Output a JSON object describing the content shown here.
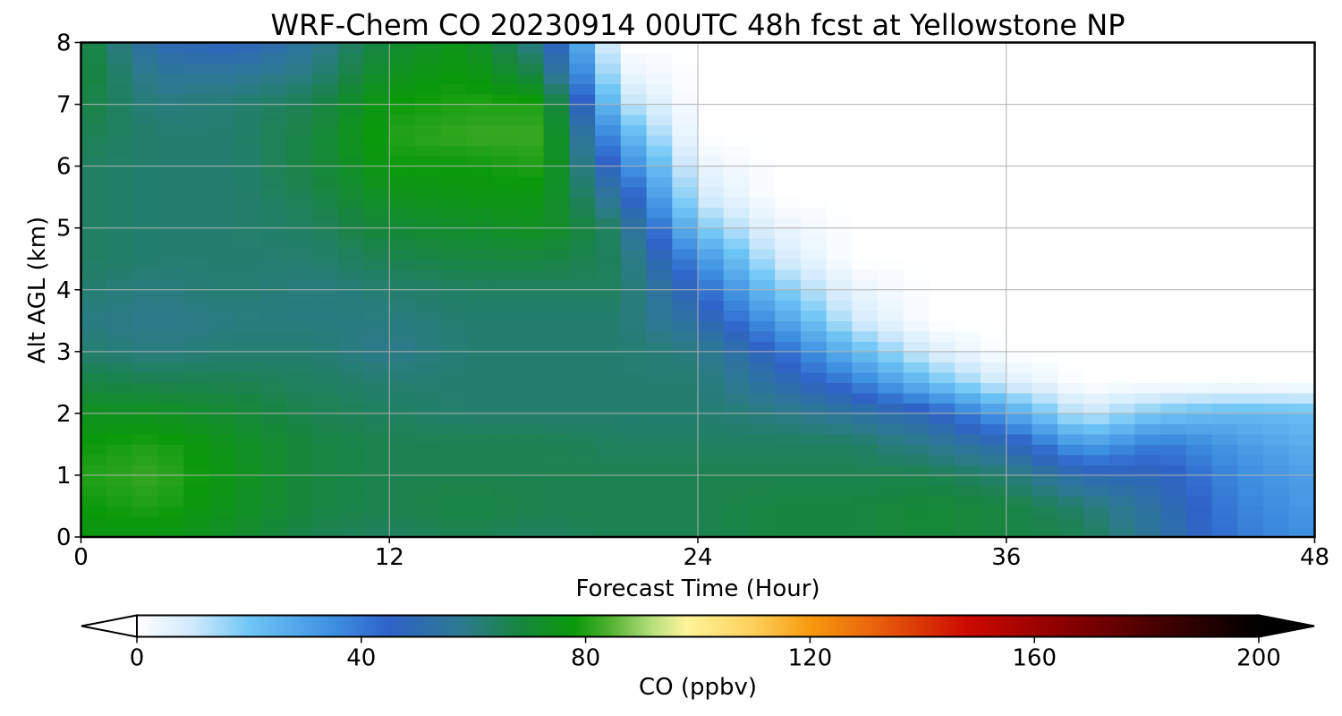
{
  "chart_data": {
    "type": "heatmap",
    "title": "WRF-Chem CO  20230914 00UTC 48h fcst at Yellowstone NP",
    "xlabel": "Forecast Time (Hour)",
    "ylabel": "Alt AGL (km)",
    "xlim": [
      0,
      48
    ],
    "ylim": [
      0,
      8
    ],
    "x_ticks": [
      0,
      12,
      24,
      36,
      48
    ],
    "y_ticks": [
      0,
      1,
      2,
      3,
      4,
      5,
      6,
      7,
      8
    ],
    "grid": true,
    "x": [
      0,
      3,
      6,
      9,
      12,
      15,
      18,
      21,
      24,
      27,
      30,
      33,
      36,
      39,
      42,
      45,
      48
    ],
    "y": [
      0,
      0.5,
      1,
      1.5,
      2,
      2.5,
      3,
      3.5,
      4,
      4.5,
      5,
      5.5,
      6,
      6.5,
      7,
      7.5,
      8
    ],
    "values": [
      [
        76,
        76,
        72,
        66,
        64,
        66,
        64,
        66,
        66,
        68,
        68,
        70,
        68,
        66,
        54,
        40,
        34
      ],
      [
        78,
        80,
        74,
        68,
        66,
        68,
        66,
        66,
        66,
        68,
        68,
        70,
        68,
        62,
        52,
        38,
        32
      ],
      [
        80,
        82,
        75,
        68,
        66,
        66,
        66,
        66,
        66,
        66,
        66,
        66,
        62,
        50,
        48,
        36,
        30
      ],
      [
        78,
        80,
        74,
        68,
        66,
        66,
        66,
        64,
        64,
        64,
        64,
        58,
        50,
        30,
        40,
        32,
        26
      ],
      [
        74,
        74,
        70,
        66,
        64,
        62,
        62,
        62,
        62,
        60,
        55,
        48,
        30,
        10,
        20,
        24,
        22
      ],
      [
        68,
        66,
        66,
        64,
        62,
        62,
        62,
        62,
        62,
        52,
        40,
        22,
        8,
        0,
        0,
        0,
        0
      ],
      [
        62,
        60,
        62,
        62,
        58,
        62,
        62,
        62,
        60,
        45,
        24,
        8,
        0,
        0,
        0,
        0,
        0
      ],
      [
        60,
        58,
        60,
        60,
        60,
        62,
        62,
        62,
        52,
        32,
        10,
        0,
        0,
        0,
        0,
        0,
        0
      ],
      [
        62,
        60,
        62,
        60,
        62,
        64,
        64,
        64,
        45,
        20,
        5,
        0,
        0,
        0,
        0,
        0,
        0
      ],
      [
        64,
        62,
        62,
        62,
        66,
        68,
        68,
        64,
        35,
        10,
        0,
        0,
        0,
        0,
        0,
        0,
        0
      ],
      [
        64,
        62,
        62,
        64,
        70,
        72,
        74,
        62,
        20,
        5,
        0,
        0,
        0,
        0,
        0,
        0,
        0
      ],
      [
        64,
        62,
        62,
        66,
        74,
        76,
        76,
        52,
        10,
        0,
        0,
        0,
        0,
        0,
        0,
        0,
        0
      ],
      [
        64,
        62,
        62,
        68,
        78,
        78,
        80,
        40,
        5,
        0,
        0,
        0,
        0,
        0,
        0,
        0,
        0
      ],
      [
        66,
        62,
        62,
        68,
        80,
        82,
        82,
        28,
        0,
        0,
        0,
        0,
        0,
        0,
        0,
        0,
        0
      ],
      [
        68,
        60,
        62,
        66,
        78,
        80,
        80,
        14,
        0,
        0,
        0,
        0,
        0,
        0,
        0,
        0,
        0
      ],
      [
        70,
        56,
        56,
        60,
        74,
        78,
        66,
        5,
        0,
        0,
        0,
        0,
        0,
        0,
        0,
        0,
        0
      ],
      [
        70,
        50,
        46,
        56,
        70,
        76,
        56,
        0,
        0,
        0,
        0,
        0,
        0,
        0,
        0,
        0,
        0
      ]
    ],
    "colorbar": {
      "label": "CO  (ppbv)",
      "min": 0,
      "max": 200,
      "ticks": [
        0,
        40,
        80,
        120,
        160,
        200
      ],
      "extend": "both",
      "location": "bottom",
      "stops": [
        [
          0,
          "#ffffff"
        ],
        [
          10,
          "#cfe9fb"
        ],
        [
          20,
          "#6ec6f5"
        ],
        [
          35,
          "#3d8fe0"
        ],
        [
          45,
          "#2f63c8"
        ],
        [
          58,
          "#2d7a8f"
        ],
        [
          68,
          "#178540"
        ],
        [
          78,
          "#0a9a0a"
        ],
        [
          84,
          "#4caf2d"
        ],
        [
          92,
          "#b8e07e"
        ],
        [
          98,
          "#fff49a"
        ],
        [
          110,
          "#fdcf5a"
        ],
        [
          120,
          "#f79a0e"
        ],
        [
          132,
          "#e8600c"
        ],
        [
          148,
          "#cc0a00"
        ],
        [
          165,
          "#8c0000"
        ],
        [
          185,
          "#3a0000"
        ],
        [
          200,
          "#000000"
        ]
      ]
    }
  }
}
